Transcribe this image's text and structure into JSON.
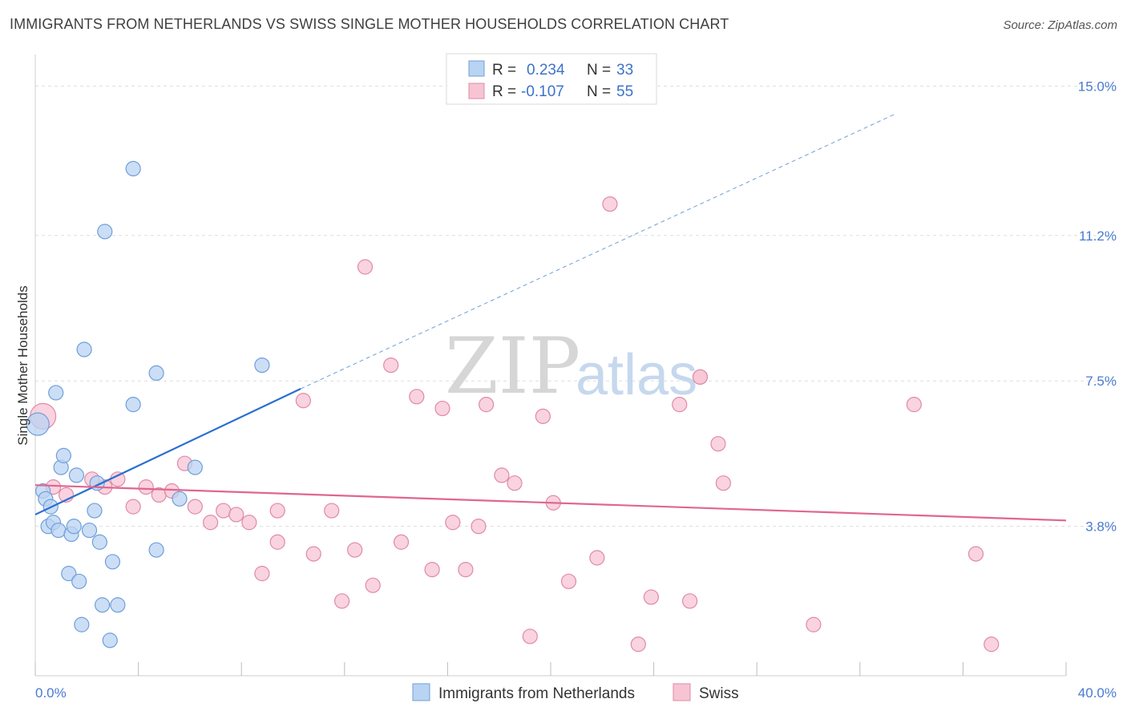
{
  "title": "IMMIGRANTS FROM NETHERLANDS VS SWISS SINGLE MOTHER HOUSEHOLDS CORRELATION CHART",
  "source": "Source: ZipAtlas.com",
  "watermark": {
    "zip": "ZIP",
    "atlas": "atlas"
  },
  "colors": {
    "blue_fill": "#b9d3f3",
    "blue_stroke": "#6f9fd8",
    "blue_line": "#2a6fcf",
    "pink_fill": "#f7c4d4",
    "pink_stroke": "#e08aa6",
    "pink_line": "#e0668f",
    "tick_text": "#4a7ad0",
    "grid": "#dddddd"
  },
  "legend": {
    "rows": [
      {
        "r_label": "R =",
        "r_value": "0.234",
        "n_label": "N =",
        "n_value": "33"
      },
      {
        "r_label": "R =",
        "r_value": "-0.107",
        "n_label": "N =",
        "n_value": "55"
      }
    ]
  },
  "chart_data": {
    "type": "scatter",
    "xlabel": "",
    "ylabel": "Single Mother Households",
    "xlim": [
      0,
      40
    ],
    "ylim": [
      0,
      15.6
    ],
    "x_tick_labels": [
      "0.0%",
      "40.0%"
    ],
    "y_ticks": [
      3.8,
      7.5,
      11.2,
      15.0
    ],
    "y_tick_labels": [
      "3.8%",
      "7.5%",
      "11.2%",
      "15.0%"
    ],
    "grid": true,
    "legend_position": "top-center",
    "series": [
      {
        "name": "Immigrants from Netherlands",
        "color": "#6f9fd8",
        "trend": {
          "x0": 0,
          "y0": 4.1,
          "x1": 10.3,
          "y1": 7.3,
          "dashed_to_x": 33.4,
          "dashed_to_y": 14.3
        },
        "points": [
          [
            0.1,
            6.4,
            14
          ],
          [
            0.3,
            4.7,
            9
          ],
          [
            0.4,
            4.5,
            9
          ],
          [
            0.5,
            3.8,
            9
          ],
          [
            0.6,
            4.3,
            9
          ],
          [
            0.7,
            3.9,
            9
          ],
          [
            0.8,
            7.2,
            9
          ],
          [
            0.9,
            3.7,
            9
          ],
          [
            1.0,
            5.3,
            9
          ],
          [
            1.1,
            5.6,
            9
          ],
          [
            1.3,
            2.6,
            9
          ],
          [
            1.4,
            3.6,
            9
          ],
          [
            1.5,
            3.8,
            9
          ],
          [
            1.6,
            5.1,
            9
          ],
          [
            1.7,
            2.4,
            9
          ],
          [
            1.8,
            1.3,
            9
          ],
          [
            1.9,
            8.3,
            9
          ],
          [
            2.1,
            3.7,
            9
          ],
          [
            2.3,
            4.2,
            9
          ],
          [
            2.4,
            4.9,
            9
          ],
          [
            2.5,
            3.4,
            9
          ],
          [
            2.6,
            1.8,
            9
          ],
          [
            2.7,
            11.3,
            9
          ],
          [
            2.9,
            0.9,
            9
          ],
          [
            3.0,
            2.9,
            9
          ],
          [
            3.2,
            1.8,
            9
          ],
          [
            3.8,
            6.9,
            9
          ],
          [
            3.8,
            12.9,
            9
          ],
          [
            4.7,
            7.7,
            9
          ],
          [
            4.7,
            3.2,
            9
          ],
          [
            5.6,
            4.5,
            9
          ],
          [
            6.2,
            5.3,
            9
          ],
          [
            8.8,
            7.9,
            9
          ]
        ]
      },
      {
        "name": "Swiss",
        "color": "#e08aa6",
        "trend": {
          "x0": 0,
          "y0": 4.85,
          "x1": 40,
          "y1": 3.95
        },
        "points": [
          [
            0.3,
            6.6,
            16
          ],
          [
            0.7,
            4.8,
            9
          ],
          [
            1.2,
            4.6,
            9
          ],
          [
            2.2,
            5.0,
            9
          ],
          [
            2.7,
            4.8,
            9
          ],
          [
            3.2,
            5.0,
            9
          ],
          [
            3.8,
            4.3,
            9
          ],
          [
            4.3,
            4.8,
            9
          ],
          [
            4.8,
            4.6,
            9
          ],
          [
            5.3,
            4.7,
            9
          ],
          [
            5.8,
            5.4,
            9
          ],
          [
            6.2,
            4.3,
            9
          ],
          [
            6.8,
            3.9,
            9
          ],
          [
            7.3,
            4.2,
            9
          ],
          [
            7.8,
            4.1,
            9
          ],
          [
            8.3,
            3.9,
            9
          ],
          [
            8.8,
            2.6,
            9
          ],
          [
            9.4,
            4.2,
            9
          ],
          [
            9.4,
            3.4,
            9
          ],
          [
            10.4,
            7.0,
            9
          ],
          [
            10.8,
            3.1,
            9
          ],
          [
            11.5,
            4.2,
            9
          ],
          [
            11.9,
            1.9,
            9
          ],
          [
            12.4,
            3.2,
            9
          ],
          [
            12.8,
            10.4,
            9
          ],
          [
            13.1,
            2.3,
            9
          ],
          [
            13.8,
            7.9,
            9
          ],
          [
            14.2,
            3.4,
            9
          ],
          [
            14.8,
            7.1,
            9
          ],
          [
            15.4,
            2.7,
            9
          ],
          [
            15.8,
            6.8,
            9
          ],
          [
            16.2,
            3.9,
            9
          ],
          [
            16.7,
            2.7,
            9
          ],
          [
            17.2,
            3.8,
            9
          ],
          [
            17.5,
            6.9,
            9
          ],
          [
            18.1,
            5.1,
            9
          ],
          [
            18.6,
            4.9,
            9
          ],
          [
            19.2,
            1.0,
            9
          ],
          [
            19.7,
            6.6,
            9
          ],
          [
            20.1,
            4.4,
            9
          ],
          [
            20.7,
            2.4,
            9
          ],
          [
            21.8,
            3.0,
            9
          ],
          [
            22.3,
            12.0,
            9
          ],
          [
            23.4,
            0.8,
            9
          ],
          [
            23.9,
            2.0,
            9
          ],
          [
            25.0,
            6.9,
            9
          ],
          [
            25.4,
            1.9,
            9
          ],
          [
            25.8,
            7.6,
            9
          ],
          [
            26.5,
            5.9,
            9
          ],
          [
            26.7,
            4.9,
            9
          ],
          [
            30.2,
            1.3,
            9
          ],
          [
            34.1,
            6.9,
            9
          ],
          [
            36.5,
            3.1,
            9
          ],
          [
            37.1,
            0.8,
            9
          ],
          [
            25.8,
            7.6,
            9
          ]
        ]
      }
    ]
  }
}
